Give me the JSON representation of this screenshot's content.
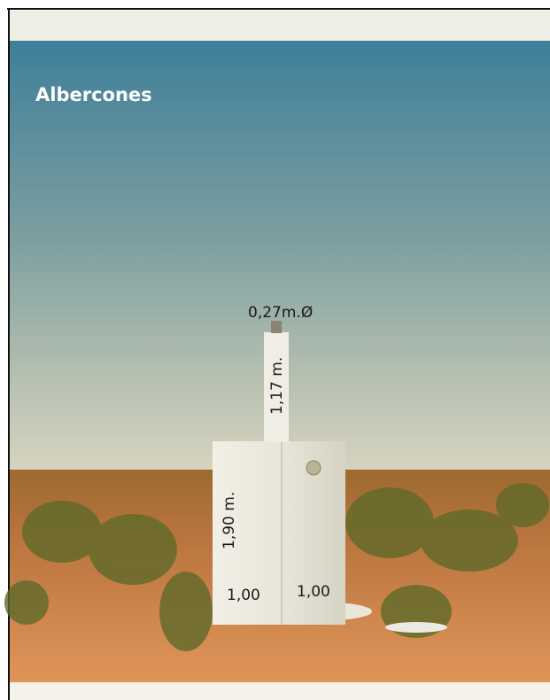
{
  "labels": {
    "place": "Albercones",
    "diameter": "0,27m.Ø",
    "column_height": "1,17 m.",
    "base_height": "1,90 m.",
    "base_width_left": "1,00",
    "base_width_right": "1,00"
  }
}
